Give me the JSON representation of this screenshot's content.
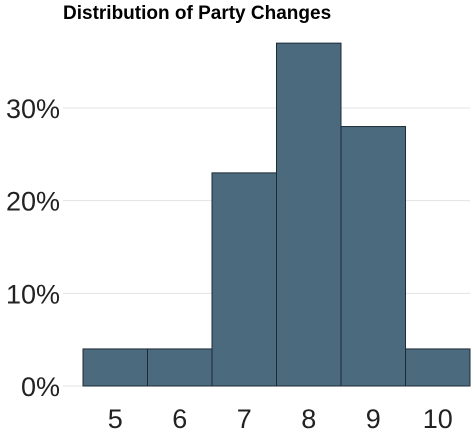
{
  "colors": {
    "bar_fill": "#4b6a7e",
    "bar_stroke": "#1c2b35",
    "grid": "#e3e3e3",
    "text": "#222222"
  },
  "chart_data": {
    "type": "bar",
    "title": "Distribution of Party Changes",
    "xlabel": "",
    "ylabel": "",
    "categories": [
      "5",
      "6",
      "7",
      "8",
      "9",
      "10"
    ],
    "values": [
      4,
      4,
      23,
      37,
      28,
      4
    ],
    "value_unit": "percent",
    "ylim": [
      0,
      40
    ],
    "yticks": [
      0,
      10,
      20,
      30
    ],
    "ytick_labels": [
      "0%",
      "10%",
      "20%",
      "30%"
    ],
    "grid": "horizontal",
    "legend": "none"
  }
}
